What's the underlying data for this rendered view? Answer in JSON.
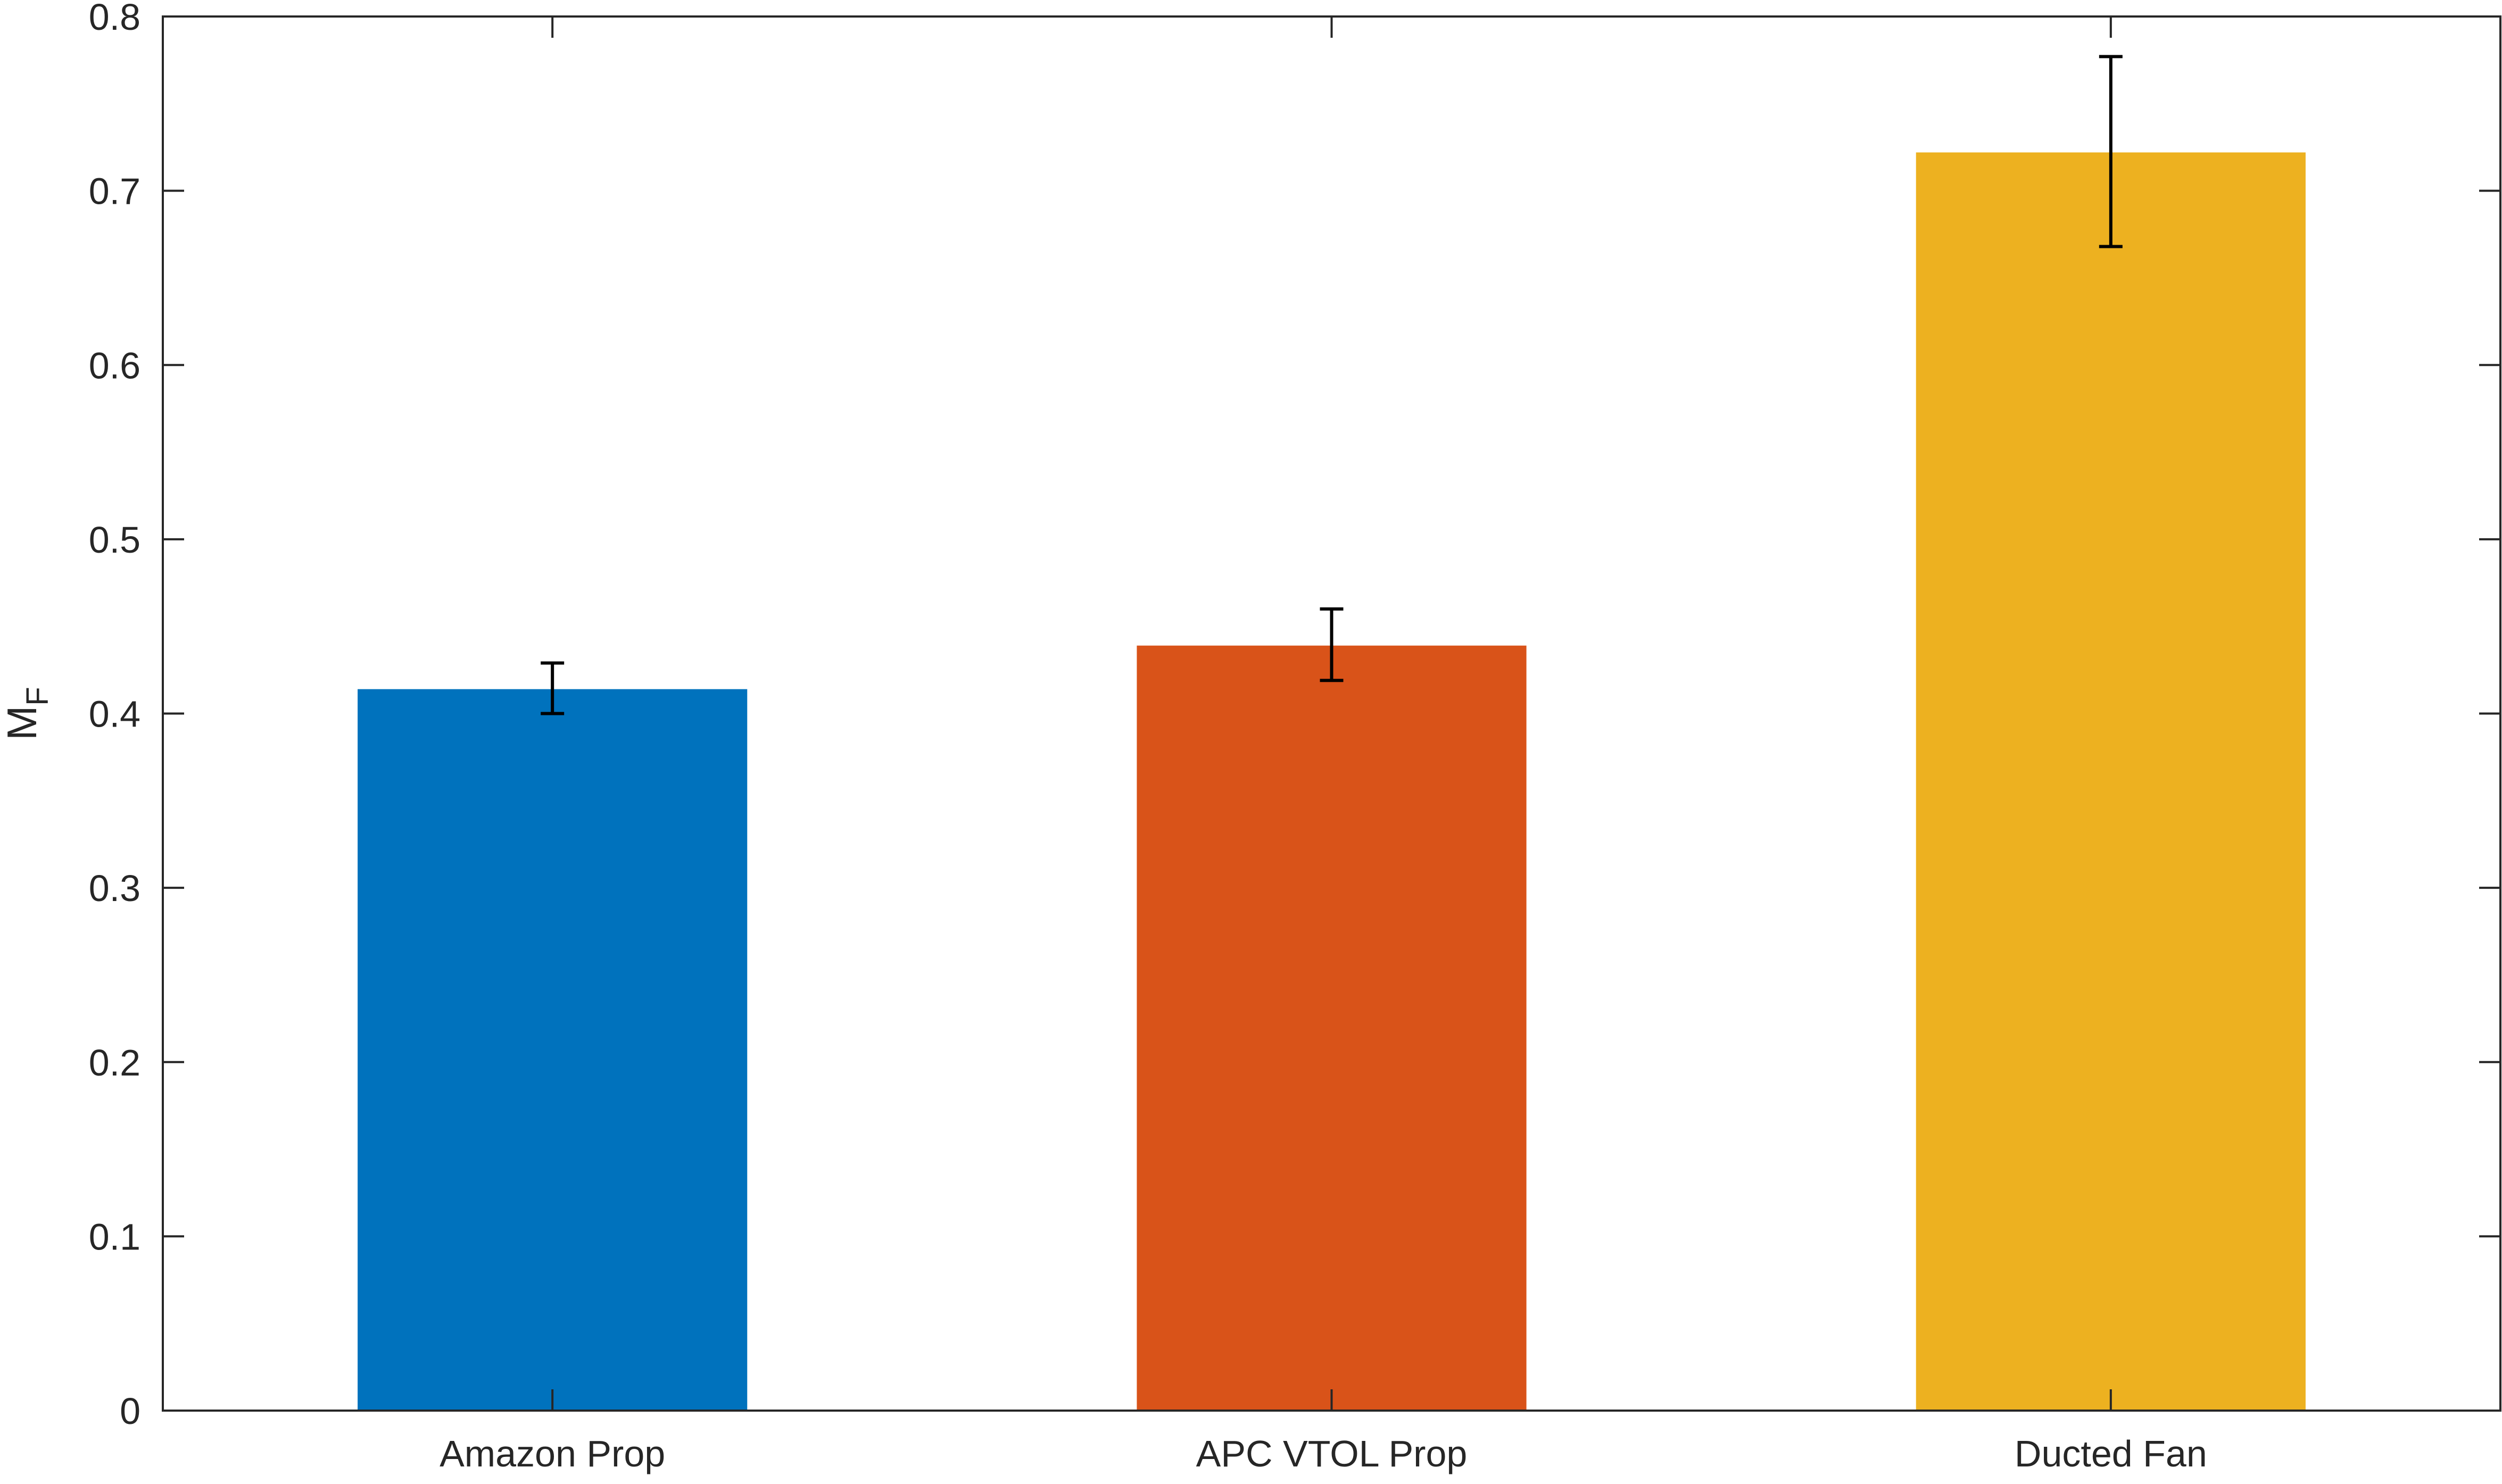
{
  "chart_data": {
    "type": "bar",
    "title": "",
    "xlabel": "",
    "ylabel": "M",
    "ylabel_subscript": "F",
    "categories": [
      "Amazon Prop",
      "APC VTOL Prop",
      "Ducted Fan"
    ],
    "values": [
      0.414,
      0.439,
      0.722
    ],
    "error_low": [
      0.4,
      0.419,
      0.668
    ],
    "error_high": [
      0.429,
      0.46,
      0.777
    ],
    "colors": [
      "#0072BD",
      "#D95319",
      "#EDB120"
    ],
    "ylim": [
      0,
      0.8
    ],
    "yticks": [
      0,
      0.1,
      0.2,
      0.3,
      0.4,
      0.5,
      0.6,
      0.7,
      0.8
    ],
    "ytick_labels": [
      "0",
      "0.1",
      "0.2",
      "0.3",
      "0.4",
      "0.5",
      "0.6",
      "0.7",
      "0.8"
    ],
    "grid": false,
    "legend": "none"
  }
}
